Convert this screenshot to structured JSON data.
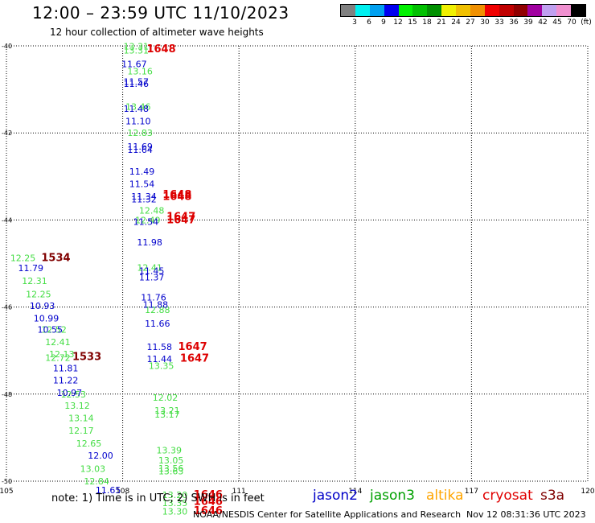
{
  "header": {
    "title": "12:00 – 23:59 UTC 11/10/2023",
    "subtitle": "12 hour collection of altimeter wave heights"
  },
  "colorbar": {
    "colors": [
      "#808080",
      "#00f0f0",
      "#00a0f0",
      "#0000f0",
      "#00f000",
      "#00c000",
      "#009000",
      "#f0f000",
      "#f0c000",
      "#f09000",
      "#f00000",
      "#c00000",
      "#900000",
      "#a000a0",
      "#c0a0f0",
      "#f090d0",
      "#000000"
    ],
    "labels": [
      "3",
      "6",
      "9",
      "12",
      "15",
      "18",
      "21",
      "24",
      "27",
      "30",
      "33",
      "36",
      "39",
      "42",
      "45",
      "70",
      "(ft)"
    ]
  },
  "satellites": [
    {
      "name": "jason2",
      "color": "#0000c8"
    },
    {
      "name": "jason3",
      "color": "#00a000"
    },
    {
      "name": "altika",
      "color": "#ffa500"
    },
    {
      "name": "cryosat",
      "color": "#e00000"
    },
    {
      "name": "s3a",
      "color": "#800000"
    }
  ],
  "footer": {
    "note": "note:  1) Time is in UTC;  2) SWH is in feet",
    "credit": "NOAA/NESDIS Center for Satellite Applications and Research",
    "timestamp": "Nov 12 08:31:36 UTC 2023"
  },
  "chart_data": {
    "type": "scatter",
    "xlim": [
      105,
      120
    ],
    "ylim": [
      -50,
      -40
    ],
    "x_ticks": [
      "105",
      "108",
      "111",
      "114",
      "117",
      "120"
    ],
    "y_ticks": [
      "-40",
      "-42",
      "-44",
      "-46",
      "-48",
      "-50"
    ],
    "grid": true,
    "series": [
      {
        "name": "jason3",
        "color": "#44dd44",
        "points": [
          {
            "x": 108.02,
            "y": -40.1,
            "label": "13.31"
          },
          {
            "x": 108.02,
            "y": -40.01,
            "label": "13.31"
          },
          {
            "x": 108.12,
            "y": -40.58,
            "label": "13.16"
          },
          {
            "x": 108.07,
            "y": -41.4,
            "label": "13.46"
          },
          {
            "x": 108.12,
            "y": -42.0,
            "label": "12.83"
          },
          {
            "x": 108.32,
            "y": -44.0,
            "label": "12.49"
          },
          {
            "x": 108.42,
            "y": -43.78,
            "label": "12.48"
          },
          {
            "x": 108.37,
            "y": -45.09,
            "label": "12.41"
          },
          {
            "x": 108.57,
            "y": -46.06,
            "label": "12.88"
          },
          {
            "x": 108.67,
            "y": -47.35,
            "label": "13.35"
          },
          {
            "x": 108.77,
            "y": -48.08,
            "label": "12.02"
          },
          {
            "x": 108.82,
            "y": -48.37,
            "label": "13.21"
          },
          {
            "x": 108.82,
            "y": -48.47,
            "label": "13.17"
          },
          {
            "x": 108.87,
            "y": -49.29,
            "label": "13.39"
          },
          {
            "x": 108.92,
            "y": -49.52,
            "label": "13.05"
          },
          {
            "x": 108.92,
            "y": -49.7,
            "label": "13.56"
          },
          {
            "x": 108.92,
            "y": -49.77,
            "label": "13.63"
          },
          {
            "x": 109.02,
            "y": -50.31,
            "label": "13.20"
          },
          {
            "x": 109.02,
            "y": -50.5,
            "label": "13.35"
          },
          {
            "x": 109.02,
            "y": -50.69,
            "label": "13.30"
          },
          {
            "x": 105.1,
            "y": -44.87,
            "label": "12.25"
          },
          {
            "x": 105.4,
            "y": -45.4,
            "label": "12.31"
          },
          {
            "x": 105.5,
            "y": -45.7,
            "label": "12.25"
          },
          {
            "x": 105.9,
            "y": -46.52,
            "label": "12.52"
          },
          {
            "x": 106.0,
            "y": -46.8,
            "label": "12.41"
          },
          {
            "x": 106.1,
            "y": -47.08,
            "label": "12.13"
          },
          {
            "x": 106.0,
            "y": -47.16,
            "label": "12.72"
          },
          {
            "x": 106.4,
            "y": -48.0,
            "label": "12.53"
          },
          {
            "x": 106.5,
            "y": -48.26,
            "label": "13.12"
          },
          {
            "x": 106.6,
            "y": -48.55,
            "label": "13.14"
          },
          {
            "x": 106.6,
            "y": -48.84,
            "label": "12.17"
          },
          {
            "x": 106.8,
            "y": -49.13,
            "label": "12.65"
          },
          {
            "x": 106.9,
            "y": -49.71,
            "label": "13.03"
          },
          {
            "x": 107.0,
            "y": -50.0,
            "label": "12.84"
          }
        ]
      },
      {
        "name": "jason2",
        "color": "#0000cc",
        "points": [
          {
            "x": 107.97,
            "y": -40.42,
            "label": "11.67"
          },
          {
            "x": 108.02,
            "y": -40.82,
            "label": "11.57"
          },
          {
            "x": 108.02,
            "y": -40.87,
            "label": "11.46"
          },
          {
            "x": 108.02,
            "y": -41.44,
            "label": "11.48"
          },
          {
            "x": 108.07,
            "y": -41.73,
            "label": "11.10"
          },
          {
            "x": 108.12,
            "y": -42.31,
            "label": "11.69"
          },
          {
            "x": 108.12,
            "y": -42.38,
            "label": "11.64"
          },
          {
            "x": 108.17,
            "y": -42.88,
            "label": "11.49"
          },
          {
            "x": 108.17,
            "y": -43.17,
            "label": "11.54"
          },
          {
            "x": 108.22,
            "y": -43.46,
            "label": "11.34"
          },
          {
            "x": 108.22,
            "y": -43.52,
            "label": "11.32"
          },
          {
            "x": 108.27,
            "y": -44.04,
            "label": "11.54"
          },
          {
            "x": 108.37,
            "y": -44.51,
            "label": "11.98"
          },
          {
            "x": 108.42,
            "y": -45.17,
            "label": "11.45"
          },
          {
            "x": 108.42,
            "y": -45.31,
            "label": "11.37"
          },
          {
            "x": 108.47,
            "y": -45.78,
            "label": "11.76"
          },
          {
            "x": 108.52,
            "y": -45.94,
            "label": "11.88"
          },
          {
            "x": 108.57,
            "y": -46.38,
            "label": "11.66"
          },
          {
            "x": 108.62,
            "y": -46.91,
            "label": "11.58"
          },
          {
            "x": 108.62,
            "y": -47.19,
            "label": "11.44"
          },
          {
            "x": 105.3,
            "y": -45.1,
            "label": "11.79"
          },
          {
            "x": 105.6,
            "y": -45.97,
            "label": "10.93"
          },
          {
            "x": 105.7,
            "y": -46.26,
            "label": "10.99"
          },
          {
            "x": 105.8,
            "y": -46.52,
            "label": "10.55"
          },
          {
            "x": 106.2,
            "y": -47.4,
            "label": "11.81"
          },
          {
            "x": 106.2,
            "y": -47.68,
            "label": "11.22"
          },
          {
            "x": 106.3,
            "y": -47.97,
            "label": "10.97"
          },
          {
            "x": 107.1,
            "y": -49.41,
            "label": "12.00"
          },
          {
            "x": 107.3,
            "y": -50.2,
            "label": "11.65"
          }
        ]
      },
      {
        "name": "cryosat",
        "color": "#dd0000",
        "points": [
          {
            "x": 108.62,
            "y": -40.07,
            "label": "1648"
          },
          {
            "x": 109.03,
            "y": -43.42,
            "label": "1648"
          },
          {
            "x": 109.03,
            "y": -43.47,
            "label": "1648"
          },
          {
            "x": 109.13,
            "y": -43.93,
            "label": "1647"
          },
          {
            "x": 109.13,
            "y": -44.0,
            "label": "1647"
          },
          {
            "x": 109.43,
            "y": -46.91,
            "label": "1647"
          },
          {
            "x": 109.48,
            "y": -47.18,
            "label": "1647"
          },
          {
            "x": 109.83,
            "y": -50.31,
            "label": "1646"
          },
          {
            "x": 109.83,
            "y": -50.47,
            "label": "1646"
          },
          {
            "x": 109.83,
            "y": -50.68,
            "label": "1646"
          }
        ]
      },
      {
        "name": "s3a",
        "color": "#800000",
        "points": [
          {
            "x": 105.9,
            "y": -44.87,
            "label": "1534"
          },
          {
            "x": 106.7,
            "y": -47.14,
            "label": "1533"
          }
        ]
      }
    ]
  }
}
